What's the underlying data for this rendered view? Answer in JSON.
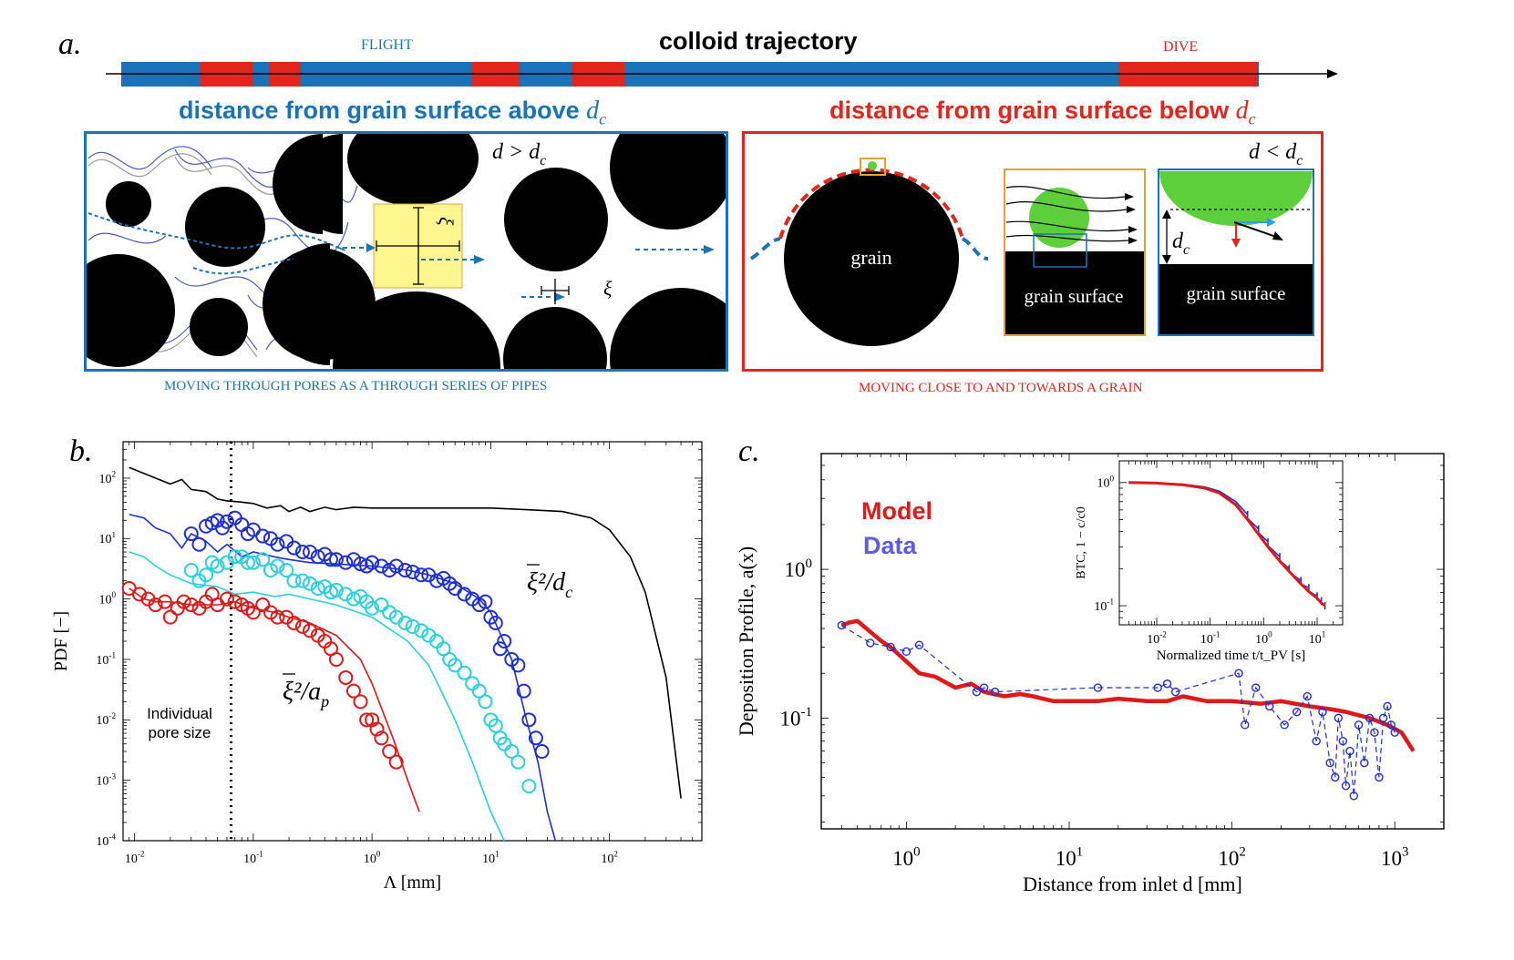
{
  "panel_a": {
    "letter": "a",
    "trajectory_title": "colloid trajectory",
    "flight_label": "FLIGHT",
    "dive_label": "DIVE",
    "heading_above": "distance from grain surface above",
    "heading_below": "distance from grain surface below",
    "dc_symbol": "d",
    "dc_sub": "c",
    "d_gt": "d > d",
    "d_lt": "d < d",
    "xi": "ξ",
    "grain_label": "grain",
    "grain_surface_label_1": "grain surface",
    "grain_surface_label_2": "grain surface",
    "caption_left": "MOVING THROUGH PORES AS A THROUGH SERIES OF PIPES",
    "caption_right": "MOVING CLOSE TO AND TOWARDS A GRAIN",
    "colors": {
      "flight": "#1a73b8",
      "dive": "#e2261c",
      "green": "#5ccf3a",
      "yellow": "#fff68f"
    }
  },
  "panel_b": {
    "letter": "b",
    "annotation": [
      "Individual",
      "pore size"
    ],
    "curve_label_dc": "ξ²/d",
    "curve_label_ap": "ξ²/a",
    "curve_label_dc_sub": "c",
    "curve_label_ap_sub": "p"
  },
  "panel_c": {
    "letter": "c",
    "legend_model": "Model",
    "legend_data": "Data"
  },
  "chart_data": [
    {
      "type": "line",
      "title": "",
      "xlabel": "Λ [mm]",
      "ylabel": "PDF [−]",
      "xscale": "log",
      "yscale": "log",
      "xlim": [
        0.008,
        600
      ],
      "ylim": [
        0.0001,
        400
      ],
      "x_ticks": [
        {
          "v": 0.01,
          "b": "10",
          "e": "-2"
        },
        {
          "v": 0.1,
          "b": "10",
          "e": "-1"
        },
        {
          "v": 1,
          "b": "10",
          "e": "0"
        },
        {
          "v": 10,
          "b": "10",
          "e": "1"
        },
        {
          "v": 100,
          "b": "10",
          "e": "2"
        }
      ],
      "y_ticks": [
        {
          "v": 100,
          "b": "10",
          "e": "2"
        },
        {
          "v": 10,
          "b": "10",
          "e": "1"
        },
        {
          "v": 1,
          "b": "10",
          "e": "0"
        },
        {
          "v": 0.1,
          "b": "10",
          "e": "-1"
        },
        {
          "v": 0.01,
          "b": "10",
          "e": "-2"
        },
        {
          "v": 0.001,
          "b": "10",
          "e": "-3"
        },
        {
          "v": 0.0001,
          "b": "10",
          "e": "-4"
        }
      ],
      "vline": 0.065,
      "series": [
        {
          "name": "black model",
          "color": "#000000",
          "style": "line",
          "x": [
            0.009,
            0.012,
            0.015,
            0.02,
            0.025,
            0.03,
            0.04,
            0.05,
            0.06,
            0.08,
            0.1,
            0.13,
            0.17,
            0.2,
            0.25,
            0.3,
            0.4,
            0.5,
            0.7,
            1,
            2,
            5,
            10,
            20,
            40,
            70,
            100,
            150,
            200,
            300,
            400
          ],
          "y": [
            150,
            120,
            100,
            80,
            95,
            65,
            60,
            45,
            42,
            40,
            38,
            32,
            35,
            28,
            33,
            28,
            33,
            30,
            33,
            32,
            32,
            32,
            32,
            30,
            28,
            22,
            14,
            5,
            1.3,
            0.05,
            0.0005
          ]
        },
        {
          "name": "blue model",
          "color": "#1f2fd6",
          "style": "line",
          "x": [
            0.009,
            0.012,
            0.015,
            0.02,
            0.025,
            0.03,
            0.04,
            0.05,
            0.06,
            0.08,
            0.1,
            0.15,
            0.2,
            0.3,
            0.5,
            1,
            2,
            3,
            5,
            8,
            10,
            15,
            20,
            25,
            30,
            35
          ],
          "y": [
            25,
            22,
            15,
            12,
            7,
            12,
            9,
            6,
            8,
            5,
            6,
            5,
            4.5,
            4,
            3.8,
            3.5,
            3,
            2.5,
            1.8,
            1,
            0.6,
            0.1,
            0.01,
            0.002,
            0.0003,
            0.0001
          ]
        },
        {
          "name": "cyan model",
          "color": "#29d0dd",
          "style": "line",
          "x": [
            0.009,
            0.012,
            0.015,
            0.02,
            0.03,
            0.05,
            0.07,
            0.1,
            0.15,
            0.2,
            0.3,
            0.5,
            1,
            2,
            3,
            5,
            7,
            10,
            13
          ],
          "y": [
            6,
            5,
            3.5,
            2.5,
            1.8,
            1.6,
            1.2,
            1.3,
            1.1,
            1.2,
            1,
            0.8,
            0.5,
            0.2,
            0.08,
            0.01,
            0.002,
            0.0003,
            0.0001
          ]
        },
        {
          "name": "red model",
          "color": "#e01818",
          "style": "line",
          "x": [
            0.009,
            0.012,
            0.015,
            0.02,
            0.03,
            0.05,
            0.07,
            0.1,
            0.15,
            0.2,
            0.3,
            0.5,
            0.8,
            1,
            1.5,
            2,
            2.5
          ],
          "y": [
            1.5,
            1,
            0.9,
            0.9,
            0.8,
            0.8,
            0.9,
            0.7,
            0.6,
            0.5,
            0.4,
            0.25,
            0.1,
            0.04,
            0.005,
            0.001,
            0.0003
          ]
        },
        {
          "name": "blue data",
          "color": "#1f2fd6",
          "style": "circle",
          "x": [
            0.03,
            0.035,
            0.04,
            0.045,
            0.05,
            0.055,
            0.06,
            0.07,
            0.08,
            0.09,
            0.1,
            0.12,
            0.14,
            0.16,
            0.19,
            0.22,
            0.26,
            0.3,
            0.35,
            0.4,
            0.45,
            0.5,
            0.6,
            0.7,
            0.8,
            0.9,
            1,
            1.2,
            1.4,
            1.6,
            1.9,
            2.2,
            2.6,
            3,
            3.5,
            4,
            4.5,
            5,
            6,
            7,
            8,
            9,
            10,
            11,
            12,
            13,
            15,
            17,
            19,
            21,
            24,
            27
          ],
          "y": [
            12,
            8,
            16,
            18,
            20,
            15,
            19,
            22,
            17,
            12,
            14,
            11,
            10,
            8,
            9,
            7,
            6,
            6,
            5,
            5.5,
            4.5,
            4.5,
            4,
            4.5,
            3.8,
            3.5,
            4,
            3.5,
            3,
            3.5,
            3,
            2.8,
            2.5,
            2.5,
            2,
            2.2,
            1.8,
            1.5,
            1.2,
            1,
            0.8,
            0.9,
            0.5,
            0.4,
            0.15,
            0.2,
            0.1,
            0.08,
            0.03,
            0.01,
            0.005,
            0.003
          ]
        },
        {
          "name": "cyan data",
          "color": "#29d0dd",
          "style": "circle",
          "x": [
            0.03,
            0.035,
            0.04,
            0.045,
            0.05,
            0.06,
            0.07,
            0.08,
            0.09,
            0.1,
            0.12,
            0.14,
            0.16,
            0.19,
            0.22,
            0.26,
            0.3,
            0.35,
            0.4,
            0.45,
            0.5,
            0.6,
            0.7,
            0.8,
            0.9,
            1,
            1.2,
            1.4,
            1.6,
            1.9,
            2.2,
            2.6,
            3,
            3.5,
            4,
            4.5,
            5,
            6,
            7,
            8,
            9,
            10,
            11,
            12,
            13,
            15,
            17,
            21
          ],
          "y": [
            3,
            2,
            2.5,
            4,
            3.5,
            4,
            5,
            5,
            4,
            4,
            4.5,
            3,
            3.5,
            3,
            2,
            2,
            1.8,
            1.5,
            1.6,
            1.3,
            1.4,
            1.2,
            1,
            1.1,
            0.9,
            0.7,
            0.8,
            0.6,
            0.5,
            0.4,
            0.35,
            0.3,
            0.25,
            0.2,
            0.15,
            0.1,
            0.08,
            0.06,
            0.04,
            0.03,
            0.02,
            0.01,
            0.008,
            0.005,
            0.004,
            0.003,
            0.002,
            0.0008
          ]
        },
        {
          "name": "red data",
          "color": "#e01818",
          "style": "circle",
          "x": [
            0.009,
            0.011,
            0.013,
            0.015,
            0.018,
            0.02,
            0.023,
            0.026,
            0.03,
            0.035,
            0.04,
            0.045,
            0.05,
            0.06,
            0.07,
            0.08,
            0.09,
            0.1,
            0.12,
            0.14,
            0.16,
            0.19,
            0.22,
            0.26,
            0.3,
            0.35,
            0.4,
            0.45,
            0.5,
            0.6,
            0.7,
            0.8,
            0.9,
            1,
            1.1,
            1.2,
            1.4,
            1.6
          ],
          "y": [
            1.5,
            1.2,
            1,
            0.8,
            0.9,
            0.5,
            0.7,
            0.9,
            0.8,
            0.7,
            0.9,
            1.2,
            0.8,
            1,
            0.9,
            0.8,
            0.7,
            0.6,
            0.8,
            0.6,
            0.5,
            0.5,
            0.4,
            0.35,
            0.3,
            0.25,
            0.2,
            0.15,
            0.1,
            0.05,
            0.03,
            0.02,
            0.01,
            0.01,
            0.007,
            0.005,
            0.003,
            0.002
          ]
        }
      ]
    },
    {
      "type": "line",
      "title": "",
      "xlabel": "Distance from inlet d [mm]",
      "ylabel": "Deposition Profile, a(x)",
      "xscale": "log",
      "yscale": "log",
      "xlim": [
        0.3,
        2000
      ],
      "ylim": [
        0.018,
        6
      ],
      "x_ticks": [
        {
          "v": 1,
          "b": "10",
          "e": "0"
        },
        {
          "v": 10,
          "b": "10",
          "e": "1"
        },
        {
          "v": 100,
          "b": "10",
          "e": "2"
        },
        {
          "v": 1000,
          "b": "10",
          "e": "3"
        }
      ],
      "y_ticks": [
        {
          "v": 1,
          "b": "10",
          "e": "0"
        },
        {
          "v": 0.1,
          "b": "10",
          "e": "-1"
        }
      ],
      "series": [
        {
          "name": "Model",
          "color": "#e01818",
          "style": "thickline",
          "x": [
            0.4,
            0.45,
            0.5,
            0.6,
            0.7,
            0.8,
            1,
            1.2,
            1.5,
            2,
            2.5,
            3,
            4,
            5,
            6,
            8,
            10,
            15,
            20,
            30,
            40,
            50,
            70,
            100,
            150,
            200,
            300,
            400,
            500,
            700,
            900,
            1100,
            1300
          ],
          "y": [
            0.42,
            0.44,
            0.45,
            0.38,
            0.33,
            0.3,
            0.24,
            0.2,
            0.19,
            0.16,
            0.17,
            0.15,
            0.14,
            0.145,
            0.14,
            0.13,
            0.13,
            0.13,
            0.135,
            0.13,
            0.13,
            0.14,
            0.13,
            0.13,
            0.125,
            0.13,
            0.12,
            0.115,
            0.11,
            0.1,
            0.09,
            0.08,
            0.06
          ]
        },
        {
          "name": "Data",
          "color": "#1f2fd6",
          "style": "dashcircle",
          "x": [
            0.4,
            0.6,
            0.8,
            1,
            1.2,
            2.7,
            3,
            3.5,
            15,
            35,
            40,
            45,
            110,
            120,
            140,
            170,
            210,
            250,
            290,
            330,
            360,
            400,
            430,
            450,
            480,
            500,
            530,
            560,
            600,
            650,
            700,
            750,
            800,
            850,
            900,
            950,
            1000
          ],
          "y": [
            0.42,
            0.32,
            0.3,
            0.28,
            0.31,
            0.15,
            0.16,
            0.15,
            0.16,
            0.16,
            0.17,
            0.15,
            0.2,
            0.09,
            0.16,
            0.12,
            0.09,
            0.11,
            0.14,
            0.07,
            0.11,
            0.05,
            0.04,
            0.1,
            0.07,
            0.035,
            0.06,
            0.03,
            0.09,
            0.05,
            0.1,
            0.08,
            0.04,
            0.1,
            0.12,
            0.09,
            0.08
          ]
        }
      ]
    },
    {
      "type": "line",
      "title": "",
      "xlabel": "Normalized time t/t_PV [s]",
      "ylabel": "BTC, 1 − c/c0",
      "xscale": "log",
      "yscale": "log",
      "xlim": [
        0.002,
        30
      ],
      "ylim": [
        0.07,
        1.5
      ],
      "x_ticks": [
        {
          "v": 0.01,
          "b": "10",
          "e": "-2"
        },
        {
          "v": 0.1,
          "b": "10",
          "e": "-1"
        },
        {
          "v": 1,
          "b": "10",
          "e": "0"
        },
        {
          "v": 10,
          "b": "10",
          "e": "1"
        }
      ],
      "y_ticks": [
        {
          "v": 1,
          "b": "10",
          "e": "0"
        },
        {
          "v": 0.1,
          "b": "10",
          "e": "-1"
        }
      ],
      "series": [
        {
          "name": "Data",
          "color": "#1f2fd6",
          "style": "noisyline",
          "x": [
            0.003,
            0.01,
            0.03,
            0.08,
            0.15,
            0.3,
            0.5,
            0.8,
            1.2,
            2,
            3,
            5,
            7,
            10,
            12,
            14
          ],
          "y": [
            1,
            0.99,
            0.97,
            0.92,
            0.85,
            0.7,
            0.55,
            0.42,
            0.33,
            0.25,
            0.2,
            0.16,
            0.14,
            0.12,
            0.11,
            0.1
          ]
        },
        {
          "name": "Model",
          "color": "#e01818",
          "style": "thickline",
          "x": [
            0.003,
            0.01,
            0.03,
            0.08,
            0.15,
            0.3,
            0.5,
            0.8,
            1.2,
            2,
            3,
            5,
            7,
            10,
            12,
            14
          ],
          "y": [
            1,
            0.99,
            0.96,
            0.9,
            0.82,
            0.66,
            0.5,
            0.38,
            0.3,
            0.23,
            0.19,
            0.15,
            0.13,
            0.115,
            0.105,
            0.1
          ]
        }
      ]
    }
  ]
}
